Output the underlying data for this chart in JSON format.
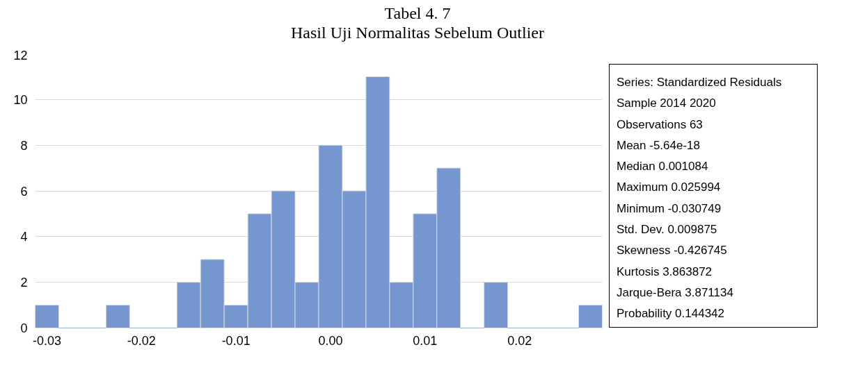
{
  "chart_data": {
    "type": "histogram",
    "title": "Tabel 4. 7",
    "subtitle": "Hasil Uji Normalitas Sebelum Outlier",
    "bins": [
      -0.03125,
      -0.02875,
      -0.02625,
      -0.02375,
      -0.02125,
      -0.01875,
      -0.01625,
      -0.01375,
      -0.01125,
      -0.00875,
      -0.00625,
      -0.00375,
      -0.00125,
      0.00125,
      0.00375,
      0.00625,
      0.00875,
      0.01125,
      0.01375,
      0.01625,
      0.01875,
      0.02125,
      0.02375,
      0.02625,
      0.02875
    ],
    "values": [
      1,
      0,
      0,
      1,
      0,
      0,
      2,
      3,
      1,
      5,
      6,
      2,
      8,
      6,
      11,
      2,
      5,
      7,
      0,
      2,
      0,
      0,
      0,
      1
    ],
    "color": "#7596cf",
    "xlim": [
      -0.03125,
      0.02875
    ],
    "xticks": [
      -0.03,
      -0.02,
      -0.01,
      {
        "value": 0,
        "label": "0.00"
      },
      0.01,
      0.02
    ],
    "ylim": [
      0,
      12
    ],
    "yticks": [
      0,
      2,
      4,
      6,
      8,
      10,
      12
    ],
    "grid": "y",
    "annotations": [
      "Series: Standardized Residuals",
      "Sample 2014 2020",
      "Observations 63",
      "Mean -5.64e-18",
      "Median 0.001084",
      "Maximum 0.025994",
      "Minimum -0.030749",
      "Std. Dev. 0.009875",
      "Skewness -0.426745",
      "Kurtosis 3.863872",
      "Jarque-Bera 3.871134",
      "Probability 0.144342"
    ]
  }
}
